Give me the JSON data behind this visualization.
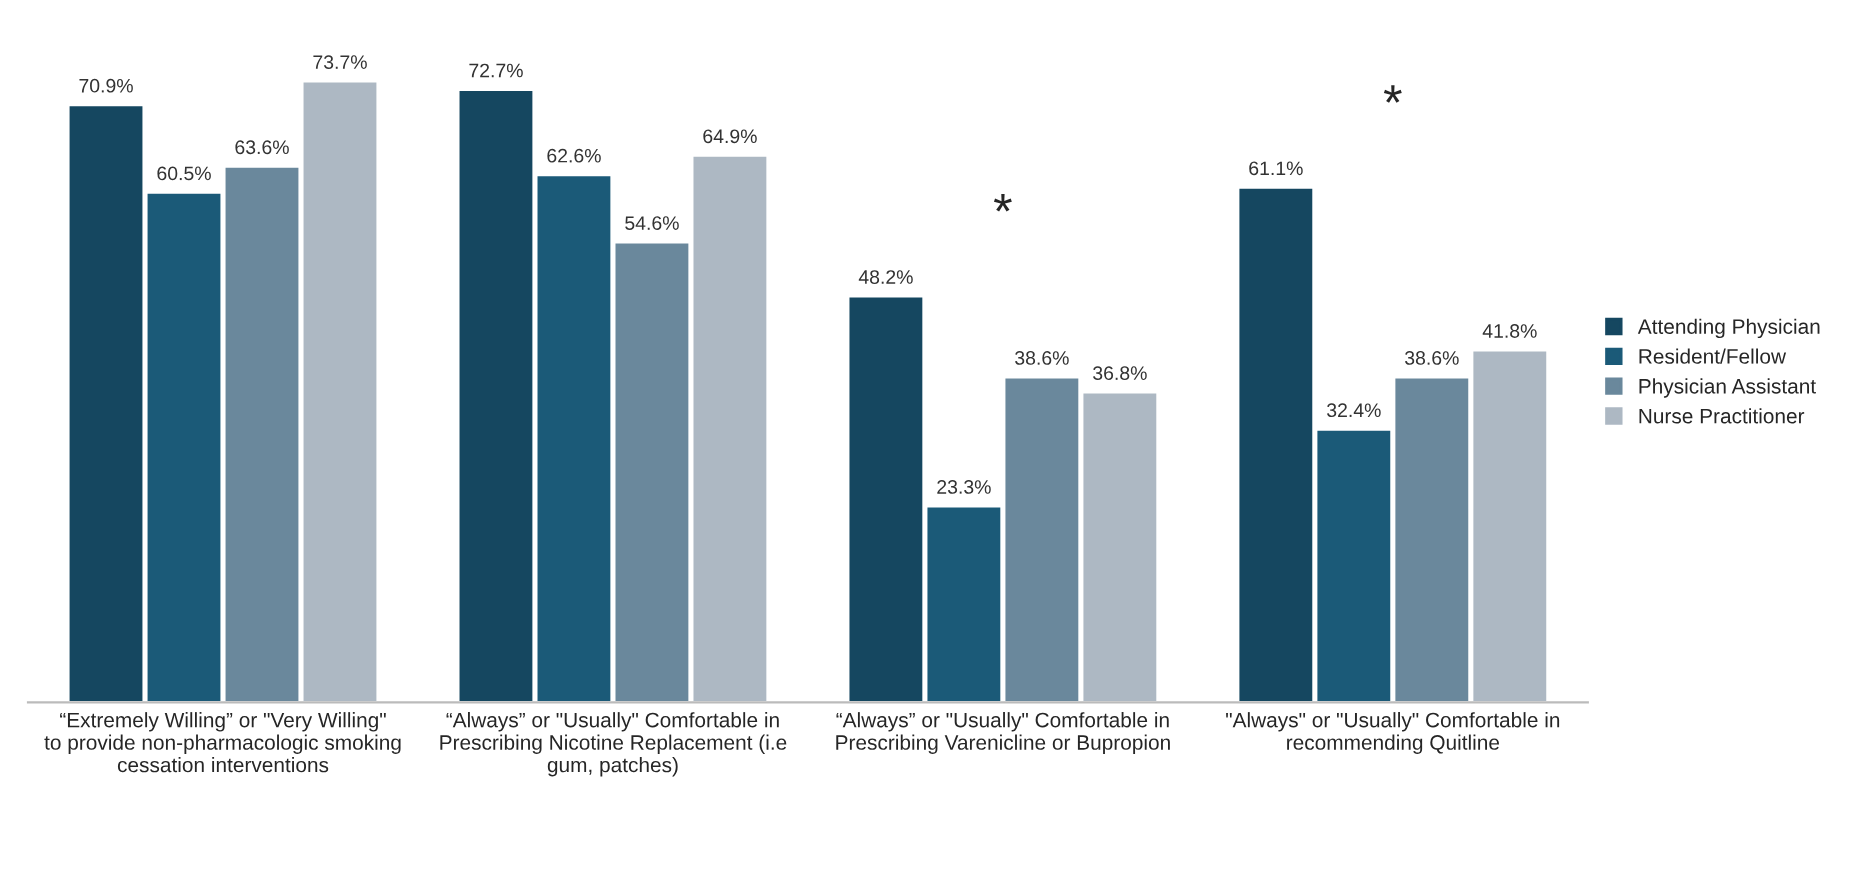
{
  "chart_data": {
    "type": "bar",
    "categories": [
      "“Extremely Willing” or \"Very Willing\" to provide non-pharmacologic smoking cessation interventions",
      "“Always” or \"Usually\" Comfortable in Prescribing Nicotine Replacement (i.e gum, patches)",
      "“Always” or \"Usually\" Comfortable in Prescribing Varenicline or Bupropion",
      "\"Always\" or \"Usually\" Comfortable in recommending Quitline"
    ],
    "series": [
      {
        "name": "Attending Physician",
        "color": "#154760",
        "values": [
          70.9,
          72.7,
          48.2,
          61.1
        ],
        "value_labels": [
          "70.9%",
          "72.7%",
          "48.2%",
          "61.1%"
        ]
      },
      {
        "name": "Resident/Fellow",
        "color": "#1b5a78",
        "values": [
          60.5,
          62.6,
          23.3,
          32.4
        ],
        "value_labels": [
          "60.5%",
          "62.6%",
          "23.3%",
          "32.4%"
        ]
      },
      {
        "name": "Physician Assistant",
        "color": "#6a889c",
        "values": [
          63.6,
          54.6,
          38.6,
          38.6
        ],
        "value_labels": [
          "63.6%",
          "54.6%",
          "38.6%",
          "38.6%"
        ]
      },
      {
        "name": "Nurse Practitioner",
        "color": "#adb8c3",
        "values": [
          73.7,
          64.9,
          36.8,
          41.8
        ],
        "value_labels": [
          "73.7%",
          "64.9%",
          "36.8%",
          "41.8%"
        ]
      }
    ],
    "annotations": [
      "*",
      "*"
    ],
    "legend": "right"
  }
}
